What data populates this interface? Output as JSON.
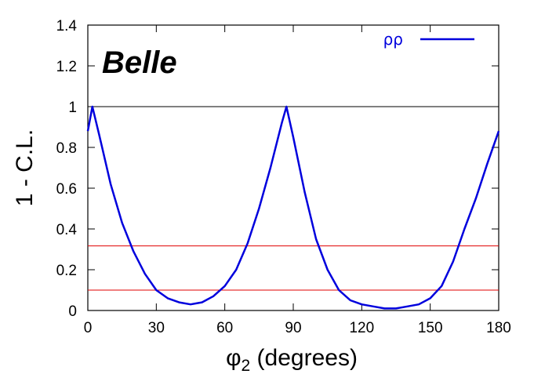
{
  "chart_data": {
    "type": "line",
    "title": "",
    "brand_label": "Belle",
    "xlabel": {
      "symbol": "φ",
      "subscript": "2",
      "rest": " (degrees)"
    },
    "ylabel": "1 - C.L.",
    "xlim": [
      0,
      180
    ],
    "ylim": [
      0,
      1.4
    ],
    "xticks": [
      0,
      30,
      60,
      90,
      120,
      150,
      180
    ],
    "yticks": [
      0,
      0.2,
      0.4,
      0.6,
      0.8,
      1,
      1.2,
      1.4
    ],
    "ytick_labels": [
      "0",
      "0.2",
      "0.4",
      "0.6",
      "0.8",
      "1",
      "1.2",
      "1.4"
    ],
    "grid": false,
    "legend": {
      "position": "top-right"
    },
    "series": [
      {
        "name": "ρρ",
        "color": "#0000dd",
        "x": [
          0,
          2,
          5,
          10,
          15,
          20,
          25,
          30,
          35,
          40,
          45,
          50,
          55,
          60,
          65,
          70,
          75,
          80,
          85,
          87,
          90,
          95,
          100,
          105,
          110,
          115,
          120,
          125,
          130,
          135,
          140,
          145,
          150,
          155,
          160,
          165,
          170,
          175,
          180
        ],
        "y": [
          0.88,
          1.0,
          0.86,
          0.62,
          0.43,
          0.29,
          0.18,
          0.1,
          0.06,
          0.04,
          0.03,
          0.04,
          0.07,
          0.12,
          0.2,
          0.33,
          0.5,
          0.7,
          0.92,
          1.0,
          0.85,
          0.58,
          0.35,
          0.2,
          0.1,
          0.05,
          0.03,
          0.02,
          0.01,
          0.01,
          0.02,
          0.03,
          0.06,
          0.12,
          0.24,
          0.4,
          0.55,
          0.72,
          0.88
        ]
      }
    ],
    "reference_lines": [
      {
        "y": 1.0,
        "color": "#000000"
      },
      {
        "y": 0.317,
        "color": "#e00000"
      },
      {
        "y": 0.1,
        "color": "#e00000"
      }
    ]
  }
}
